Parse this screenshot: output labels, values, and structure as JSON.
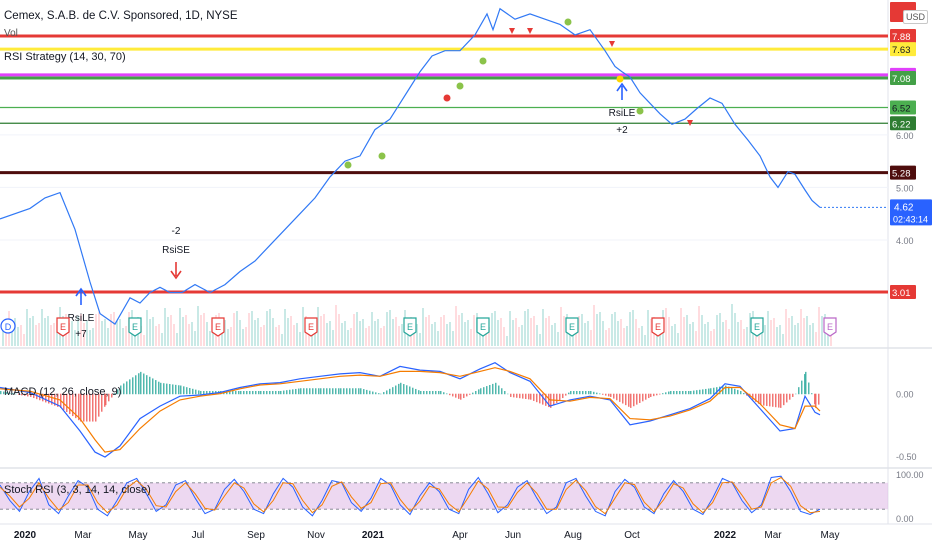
{
  "header": {
    "title": "Cemex, S.A.B. de C.V. Sponsored, 1D, NYSE",
    "volume_label": "Vol",
    "strategy_label": "RSI Strategy (14, 30, 70)",
    "macd_label": "MACD (12, 26, close, 9)",
    "stoch_label": "Stoch RSI (3, 3, 14, 14, close)",
    "currency_label": "USD"
  },
  "colors": {
    "price_line": "#3179f5",
    "macd_line": "#2962ff",
    "signal_line": "#f57c00",
    "hist_pos": "#26a69a",
    "hist_neg": "#ef5350",
    "stoch_k": "#2962ff",
    "stoch_d": "#f57c00",
    "stoch_band": "#e1bee7"
  },
  "chart_data": [
    {
      "type": "line",
      "name": "price",
      "ylim": [
        3.3,
        8.0
      ],
      "y_axis_ticks": [
        "4.00",
        "5.00",
        "6.00"
      ],
      "x_axis_labels": [
        "2020",
        "Mar",
        "May",
        "Jul",
        "Sep",
        "Nov",
        "2021",
        "Apr",
        "Jun",
        "Aug",
        "Oct",
        "2022",
        "Mar",
        "May"
      ],
      "bold_x_labels": [
        "2020",
        "2021",
        "2022"
      ],
      "x": [
        0,
        30,
        45,
        60,
        75,
        90,
        100,
        115,
        130,
        140,
        150,
        160,
        170,
        182,
        195,
        210,
        225,
        240,
        255,
        270,
        285,
        300,
        315,
        330,
        345,
        360,
        375,
        390,
        400,
        410,
        420,
        432,
        445,
        460,
        475,
        487,
        493,
        500,
        515,
        530,
        545,
        560,
        575,
        590,
        605,
        615,
        622,
        630,
        640,
        650,
        660,
        672,
        685,
        697,
        710,
        722,
        735,
        748,
        760,
        770,
        778,
        788,
        795,
        805,
        812,
        820
      ],
      "y": [
        4.4,
        4.6,
        4.8,
        4.9,
        4.2,
        3.2,
        2.6,
        2.4,
        2.9,
        2.8,
        3.0,
        3.1,
        3.0,
        3.0,
        3.15,
        3.0,
        3.15,
        3.4,
        3.6,
        3.9,
        4.2,
        4.5,
        4.8,
        5.2,
        5.5,
        5.6,
        6.1,
        6.3,
        6.6,
        6.9,
        7.2,
        7.5,
        7.6,
        7.6,
        7.9,
        8.3,
        8.0,
        8.4,
        8.2,
        8.3,
        8.2,
        8.1,
        7.9,
        8.0,
        7.6,
        7.3,
        7.2,
        7.1,
        6.8,
        6.6,
        6.4,
        6.2,
        6.3,
        6.5,
        6.7,
        6.6,
        6.2,
        5.9,
        5.6,
        5.2,
        5.0,
        5.3,
        5.25,
        4.95,
        4.75,
        4.62
      ],
      "last_value": "4.62",
      "countdown": "02:43:14",
      "levels": [
        {
          "label": "7.88",
          "value": 7.88,
          "color": "#e53935",
          "text_color": "#ffffff"
        },
        {
          "label": "7.63",
          "value": 7.63,
          "color": "#ffeb3b",
          "text_color": "#131722"
        },
        {
          "label": "7.14",
          "value": 7.14,
          "color": "#e040fb",
          "text_color": "#ffffff"
        },
        {
          "label": "7.08",
          "value": 7.08,
          "color": "#43a047",
          "text_color": "#ffffff"
        },
        {
          "label": "6.52",
          "value": 6.52,
          "color": "#4caf50",
          "text_color": "#131722"
        },
        {
          "label": "6.22",
          "value": 6.22,
          "color": "#2e7d32",
          "text_color": "#ffffff"
        },
        {
          "label": "5.28",
          "value": 5.28,
          "color": "#4e0d0d",
          "text_color": "#ffffff"
        },
        {
          "label": "3.01",
          "value": 3.01,
          "color": "#e53935",
          "text_color": "#ffffff"
        }
      ],
      "top_marker_label": "7.88",
      "annotations": [
        {
          "text": "-2",
          "x": 176,
          "yp": 234
        },
        {
          "text": "RsiSE",
          "x": 176,
          "yp": 253
        },
        {
          "text": "RsiLE",
          "x": 622,
          "yp": 116
        },
        {
          "text": "+2",
          "x": 622,
          "yp": 133
        },
        {
          "text": "RsiLE",
          "x": 81,
          "yp": 321
        },
        {
          "text": "+7",
          "x": 81,
          "yp": 337
        }
      ],
      "event_markers": [
        {
          "letter": "D",
          "x": 8,
          "color": "#2962ff",
          "shape": "circle"
        },
        {
          "letter": "E",
          "x": 63,
          "color": "#e53935"
        },
        {
          "letter": "E",
          "x": 135,
          "color": "#26a69a"
        },
        {
          "letter": "E",
          "x": 218,
          "color": "#e53935"
        },
        {
          "letter": "E",
          "x": 311,
          "color": "#e53935"
        },
        {
          "letter": "E",
          "x": 410,
          "color": "#26a69a"
        },
        {
          "letter": "E",
          "x": 483,
          "color": "#26a69a"
        },
        {
          "letter": "E",
          "x": 572,
          "color": "#26a69a"
        },
        {
          "letter": "E",
          "x": 658,
          "color": "#e53935"
        },
        {
          "letter": "E",
          "x": 757,
          "color": "#26a69a"
        },
        {
          "letter": "E",
          "x": 830,
          "color": "#ba68c8"
        }
      ]
    },
    {
      "type": "line",
      "name": "macd",
      "ylim": [
        -0.55,
        0.32
      ],
      "y_axis_ticks": [
        "0.00",
        "-0.50"
      ],
      "x": [
        0,
        30,
        60,
        80,
        95,
        105,
        120,
        140,
        160,
        180,
        200,
        220,
        240,
        260,
        280,
        300,
        320,
        340,
        360,
        380,
        400,
        420,
        440,
        460,
        480,
        495,
        510,
        530,
        550,
        570,
        590,
        610,
        630,
        650,
        670,
        690,
        710,
        725,
        740,
        760,
        780,
        795,
        805,
        815,
        820
      ],
      "y": [
        0.05,
        0.01,
        -0.1,
        -0.3,
        -0.47,
        -0.51,
        -0.42,
        -0.2,
        -0.1,
        -0.02,
        -0.01,
        0.01,
        0.05,
        0.08,
        0.09,
        0.12,
        0.14,
        0.16,
        0.17,
        0.14,
        0.22,
        0.19,
        0.18,
        0.12,
        0.2,
        0.25,
        0.17,
        0.1,
        -0.1,
        -0.05,
        -0.02,
        -0.05,
        -0.25,
        -0.22,
        -0.17,
        -0.12,
        -0.04,
        0.08,
        0.06,
        -0.12,
        -0.3,
        -0.28,
        -0.02,
        -0.15,
        -0.17
      ],
      "signal": [
        0.04,
        0.02,
        -0.05,
        -0.2,
        -0.37,
        -0.47,
        -0.45,
        -0.28,
        -0.14,
        -0.05,
        -0.02,
        0.0,
        0.04,
        0.07,
        0.08,
        0.1,
        0.12,
        0.14,
        0.15,
        0.14,
        0.18,
        0.18,
        0.17,
        0.14,
        0.18,
        0.21,
        0.18,
        0.12,
        -0.05,
        -0.06,
        -0.03,
        -0.04,
        -0.2,
        -0.21,
        -0.18,
        -0.13,
        -0.06,
        0.05,
        0.05,
        -0.08,
        -0.25,
        -0.28,
        -0.1,
        -0.1,
        -0.14
      ]
    },
    {
      "type": "line",
      "name": "stoch_rsi",
      "ylim": [
        0,
        100
      ],
      "y_axis_ticks": [
        "100.00",
        "0.00"
      ],
      "band": [
        20,
        80
      ],
      "k": [
        75,
        40,
        15,
        60,
        90,
        30,
        10,
        50,
        85,
        70,
        20,
        5,
        40,
        80,
        90,
        55,
        15,
        30,
        75,
        85,
        45,
        10,
        20,
        65,
        88,
        60,
        20,
        10,
        55,
        90,
        70,
        25,
        5,
        40,
        85,
        80,
        35,
        15,
        45,
        90,
        75,
        30,
        8,
        50,
        80,
        60,
        20,
        10,
        65,
        92,
        55,
        12,
        30,
        70,
        85,
        45,
        10,
        25,
        80,
        90,
        50,
        15,
        5,
        60,
        88,
        70,
        25,
        10,
        55,
        85,
        60,
        20,
        8,
        45,
        90,
        80,
        40,
        12,
        30,
        92,
        95,
        60,
        15,
        8,
        20
      ],
      "d": [
        70,
        50,
        25,
        45,
        80,
        45,
        18,
        35,
        75,
        75,
        35,
        12,
        30,
        68,
        85,
        65,
        28,
        25,
        60,
        80,
        55,
        22,
        18,
        50,
        80,
        68,
        32,
        14,
        40,
        80,
        78,
        40,
        12,
        30,
        72,
        82,
        48,
        22,
        35,
        78,
        80,
        42,
        15,
        38,
        72,
        66,
        32,
        14,
        48,
        84,
        66,
        25,
        24,
        58,
        80,
        56,
        20,
        20,
        65,
        86,
        62,
        26,
        10,
        45,
        80,
        76,
        36,
        14,
        42,
        78,
        68,
        32,
        12,
        35,
        80,
        82,
        52,
        20,
        25,
        80,
        92,
        72,
        28,
        12,
        15
      ]
    }
  ]
}
